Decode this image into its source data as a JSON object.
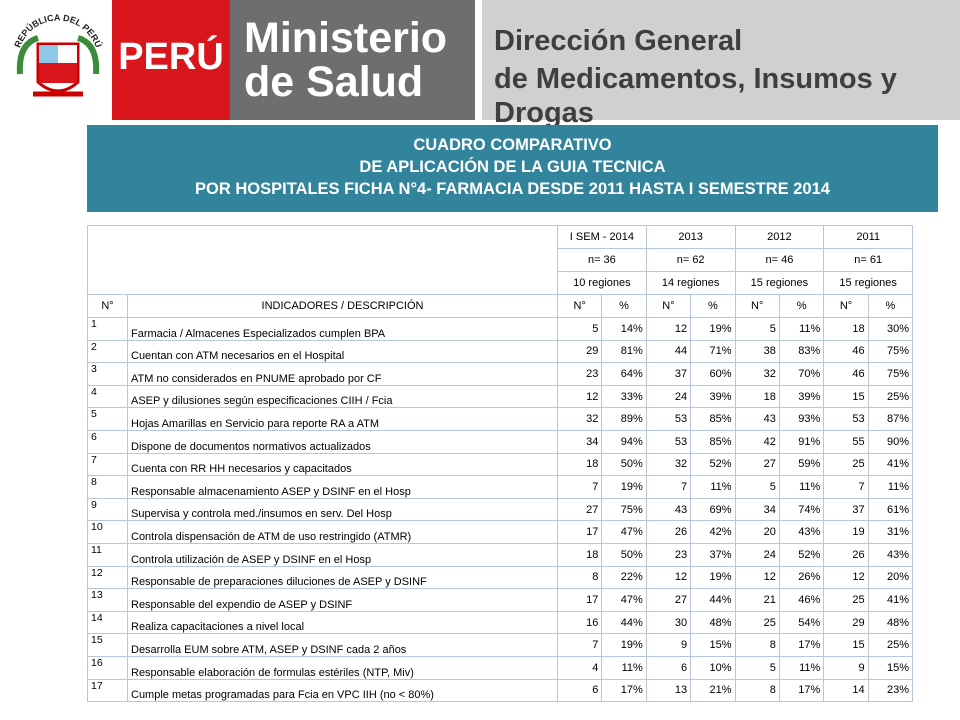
{
  "header": {
    "emblem_text": "REPÚBLICA DEL PERÚ",
    "country": "PERÚ",
    "ministry": [
      "Ministerio",
      "de Salud"
    ],
    "direction": [
      "Dirección General",
      "de Medicamentos, Insumos y Drogas"
    ]
  },
  "title": [
    "CUADRO COMPARATIVO",
    "DE  APLICACIÓN DE LA GUIA TECNICA",
    "POR HOSPITALES  FICHA N°4- FARMACIA   DESDE 2011 HASTA  I SEMESTRE 2014"
  ],
  "table": {
    "periods": [
      "I SEM - 2014",
      "2013",
      "2012",
      "2011"
    ],
    "samples": [
      "n= 36",
      "n= 62",
      "n= 46",
      "n= 61"
    ],
    "regions": [
      "10 regiones",
      "14 regiones",
      "15 regiones",
      "15 regiones"
    ],
    "columns": [
      "N°",
      "INDICADORES / DESCRIPCIÓN",
      "N°",
      "%",
      "N°",
      "%",
      "N°",
      "%",
      "N°",
      "%"
    ],
    "rows": [
      [
        "1",
        "Farmacia / Almacenes Especializados cumplen BPA",
        "5",
        "14%",
        "12",
        "19%",
        "5",
        "11%",
        "18",
        "30%"
      ],
      [
        "2",
        "Cuentan con ATM necesarios en el Hospital",
        "29",
        "81%",
        "44",
        "71%",
        "38",
        "83%",
        "46",
        "75%"
      ],
      [
        "3",
        "ATM no considerados en PNUME aprobado por CF",
        "23",
        "64%",
        "37",
        "60%",
        "32",
        "70%",
        "46",
        "75%"
      ],
      [
        "4",
        "ASEP y dilusiones según especificaciones CIIH / Fcia",
        "12",
        "33%",
        "24",
        "39%",
        "18",
        "39%",
        "15",
        "25%"
      ],
      [
        "5",
        "Hojas Amarillas en Servicio para reporte RA a ATM",
        "32",
        "89%",
        "53",
        "85%",
        "43",
        "93%",
        "53",
        "87%"
      ],
      [
        "6",
        "Dispone de documentos normativos actualizados",
        "34",
        "94%",
        "53",
        "85%",
        "42",
        "91%",
        "55",
        "90%"
      ],
      [
        "7",
        "Cuenta con RR HH necesarios y capacitados",
        "18",
        "50%",
        "32",
        "52%",
        "27",
        "59%",
        "25",
        "41%"
      ],
      [
        "8",
        "Responsable almacenamiento ASEP y DSINF en el Hosp",
        "7",
        "19%",
        "7",
        "11%",
        "5",
        "11%",
        "7",
        "11%"
      ],
      [
        "9",
        "Supervisa y controla med./insumos en serv. Del Hosp",
        "27",
        "75%",
        "43",
        "69%",
        "34",
        "74%",
        "37",
        "61%"
      ],
      [
        "10",
        "Controla dispensación de ATM de uso restringido (ATMR)",
        "17",
        "47%",
        "26",
        "42%",
        "20",
        "43%",
        "19",
        "31%"
      ],
      [
        "11",
        "Controla utilización de ASEP y DSINF en el Hosp",
        "18",
        "50%",
        "23",
        "37%",
        "24",
        "52%",
        "26",
        "43%"
      ],
      [
        "12",
        "Responsable de preparaciones diluciones de ASEP y DSINF",
        "8",
        "22%",
        "12",
        "19%",
        "12",
        "26%",
        "12",
        "20%"
      ],
      [
        "13",
        "Responsable del expendio de ASEP y DSINF",
        "17",
        "47%",
        "27",
        "44%",
        "21",
        "46%",
        "25",
        "41%"
      ],
      [
        "14",
        "Realiza capacitaciones a nivel local",
        "16",
        "44%",
        "30",
        "48%",
        "25",
        "54%",
        "29",
        "48%"
      ],
      [
        "15",
        "Desarrolla EUM sobre ATM, ASEP y DSINF cada 2 años",
        "7",
        "19%",
        "9",
        "15%",
        "8",
        "17%",
        "15",
        "25%"
      ],
      [
        "16",
        "Responsable elaboración de formulas estériles (NTP, Miv)",
        "4",
        "11%",
        "6",
        "10%",
        "5",
        "11%",
        "9",
        "15%"
      ],
      [
        "17",
        "Cumple metas programadas para Fcia en VPC IIH (no < 80%)",
        "6",
        "17%",
        "13",
        "21%",
        "8",
        "17%",
        "14",
        "23%"
      ]
    ]
  }
}
